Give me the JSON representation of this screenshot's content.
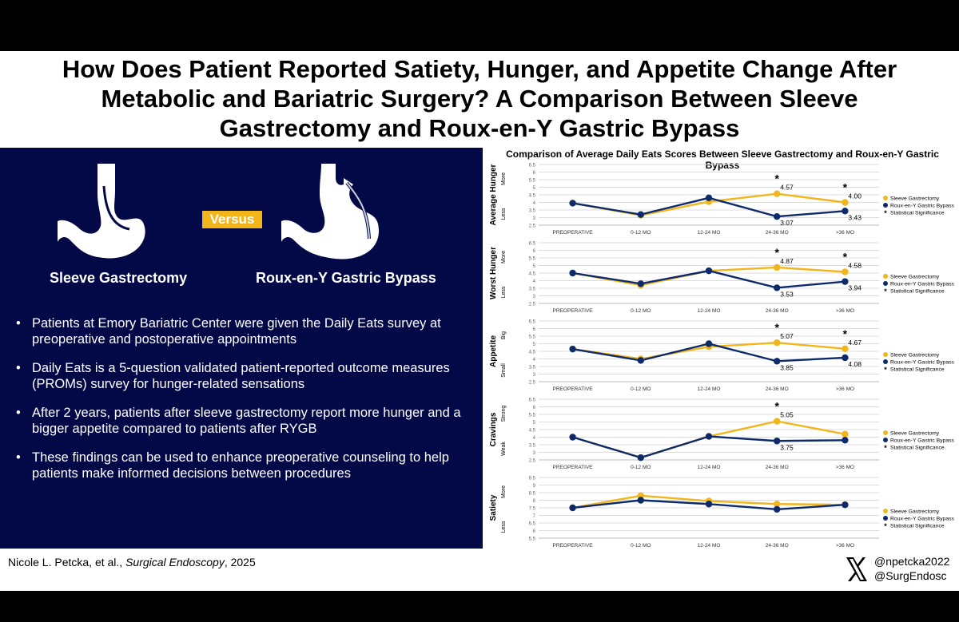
{
  "title": "How Does Patient Reported Satiety, Hunger, and Appetite Change After Metabolic and Bariatric Surgery? A Comparison Between Sleeve Gastrectomy and Roux-en-Y Gastric Bypass",
  "versus_label": "Versus",
  "procedures": {
    "left": "Sleeve Gastrectomy",
    "right": "Roux-en-Y Gastric Bypass"
  },
  "bullets": [
    "Patients at Emory Bariatric Center were given the Daily Eats survey at preoperative and postoperative appointments",
    "Daily Eats is a 5-question validated patient-reported outcome measures (PROMs) survey for hunger-related sensations",
    "After 2 years, patients after sleeve gastrectomy report more hunger and a bigger appetite compared to patients after RYGB",
    "These findings can be used to enhance preoperative counseling to help patients make informed decisions between procedures"
  ],
  "citation": {
    "authors": "Nicole L. Petcka, et al., ",
    "journal": "Surgical Endoscopy",
    "year": ", 2025"
  },
  "social": {
    "handle1": "@npetcka2022",
    "handle2": "@SurgEndosc"
  },
  "colors": {
    "navy": "#030846",
    "sleeve": "#f2b51b",
    "bypass": "#0d2a6b"
  },
  "chart_title": "Comparison of Average Daily Eats Scores Between Sleeve Gastrectomy and Roux-en-Y Gastric Bypass",
  "chart_data": [
    {
      "type": "line",
      "title": "Average Hunger",
      "ylabel_top": "More",
      "ylabel_bottom": "Less",
      "categories": [
        "PREOPERATIVE",
        "0-12 MO",
        "12-24 MO",
        "24-36 MO",
        ">36 MO"
      ],
      "ylim": [
        2.5,
        6.5
      ],
      "yticks": [
        "2.5",
        "3",
        "3.5",
        "4",
        "4.5",
        "5",
        "5.5",
        "6",
        "6.5"
      ],
      "series": [
        {
          "name": "Sleeve Gastrectomy",
          "values": [
            3.95,
            3.15,
            4.05,
            4.57,
            4.0
          ]
        },
        {
          "name": "Roux-en-Y Gastric Bypass",
          "values": [
            3.95,
            3.2,
            4.3,
            3.07,
            3.43
          ]
        }
      ],
      "data_labels": [
        {
          "series": 0,
          "index": 3,
          "text": "4.57"
        },
        {
          "series": 0,
          "index": 4,
          "text": "4.00"
        },
        {
          "series": 1,
          "index": 3,
          "text": "3.07"
        },
        {
          "series": 1,
          "index": 4,
          "text": "3.43"
        }
      ],
      "significant": [
        3,
        4
      ],
      "legend": [
        "Sleeve Gastrectomy",
        "Roux-en-Y Gastric Bypass",
        "Statistical Significance"
      ]
    },
    {
      "type": "line",
      "title": "Worst Hunger",
      "ylabel_top": "More",
      "ylabel_bottom": "Less",
      "categories": [
        "PREOPERATIVE",
        "0-12 MO",
        "12-24 MO",
        "24-36 MO",
        ">36 MO"
      ],
      "ylim": [
        2.5,
        6.5
      ],
      "yticks": [
        "2.5",
        "3",
        "3.5",
        "4",
        "4.5",
        "5",
        "5.5",
        "6",
        "6.5"
      ],
      "series": [
        {
          "name": "Sleeve Gastrectomy",
          "values": [
            4.5,
            3.7,
            4.65,
            4.87,
            4.58
          ]
        },
        {
          "name": "Roux-en-Y Gastric Bypass",
          "values": [
            4.5,
            3.8,
            4.65,
            3.53,
            3.94
          ]
        }
      ],
      "data_labels": [
        {
          "series": 0,
          "index": 3,
          "text": "4.87"
        },
        {
          "series": 0,
          "index": 4,
          "text": "4.58"
        },
        {
          "series": 1,
          "index": 3,
          "text": "3.53"
        },
        {
          "series": 1,
          "index": 4,
          "text": "3.94"
        }
      ],
      "significant": [
        3,
        4
      ],
      "legend": [
        "Sleeve Gastrectomy",
        "Roux-en-Y Gastric Bypass",
        "Statistical Significance"
      ]
    },
    {
      "type": "line",
      "title": "Appetite",
      "ylabel_top": "Big",
      "ylabel_bottom": "Small",
      "categories": [
        "PREOPERATIVE",
        "0-12 MO",
        "12-24 MO",
        "24-36 MO",
        ">36 MO"
      ],
      "ylim": [
        2.5,
        6.5
      ],
      "yticks": [
        "2.5",
        "3",
        "3.5",
        "4",
        "4.5",
        "5",
        "5.5",
        "6",
        "6.5"
      ],
      "series": [
        {
          "name": "Sleeve Gastrectomy",
          "values": [
            4.65,
            4.0,
            4.8,
            5.07,
            4.67
          ]
        },
        {
          "name": "Roux-en-Y Gastric Bypass",
          "values": [
            4.65,
            3.9,
            5.0,
            3.85,
            4.08
          ]
        }
      ],
      "data_labels": [
        {
          "series": 0,
          "index": 3,
          "text": "5.07"
        },
        {
          "series": 0,
          "index": 4,
          "text": "4.67"
        },
        {
          "series": 1,
          "index": 3,
          "text": "3.85"
        },
        {
          "series": 1,
          "index": 4,
          "text": "4.08"
        }
      ],
      "significant": [
        3,
        4
      ],
      "legend": [
        "Sleeve Gastrectomy",
        "Roux-en-Y Gastric Bypass",
        "Statistical Significance"
      ]
    },
    {
      "type": "line",
      "title": "Cravings",
      "ylabel_top": "Strong",
      "ylabel_bottom": "Weak",
      "categories": [
        "PREOPERATIVE",
        "0-12 MO",
        "12-24 MO",
        "24-36 MO",
        ">36 MO"
      ],
      "ylim": [
        2.5,
        6.5
      ],
      "yticks": [
        "2.5",
        "3",
        "3.5",
        "4",
        "4.5",
        "5",
        "5.5",
        "6",
        "6.5"
      ],
      "series": [
        {
          "name": "Sleeve Gastrectomy",
          "values": [
            4.0,
            2.65,
            4.05,
            5.05,
            4.2
          ]
        },
        {
          "name": "Roux-en-Y Gastric Bypass",
          "values": [
            4.0,
            2.65,
            4.05,
            3.75,
            3.8
          ]
        }
      ],
      "data_labels": [
        {
          "series": 0,
          "index": 3,
          "text": "5.05"
        },
        {
          "series": 1,
          "index": 3,
          "text": "3.75"
        }
      ],
      "significant": [
        3
      ],
      "legend": [
        "Sleeve Gastrectomy",
        "Roux-en-Y Gastric Bypass",
        "Statistical Significance"
      ]
    },
    {
      "type": "line",
      "title": "Satiety",
      "ylabel_top": "More",
      "ylabel_bottom": "Less",
      "categories": [
        "PREOPERATIVE",
        "0-12 MO",
        "12-24 MO",
        "24-36 MO",
        ">36 MO"
      ],
      "ylim": [
        5.5,
        9.5
      ],
      "yticks": [
        "5.5",
        "6",
        "6.5",
        "7",
        "7.5",
        "8",
        "8.5",
        "9",
        "9.5"
      ],
      "series": [
        {
          "name": "Sleeve Gastrectomy",
          "values": [
            7.5,
            8.3,
            7.95,
            7.75,
            7.7
          ]
        },
        {
          "name": "Roux-en-Y Gastric Bypass",
          "values": [
            7.5,
            8.0,
            7.75,
            7.4,
            7.7
          ]
        }
      ],
      "data_labels": [],
      "significant": [],
      "legend": [
        "Sleeve Gastrectomy",
        "Roux-en-Y Gastric Bypass",
        "Statistical Significance"
      ]
    }
  ]
}
